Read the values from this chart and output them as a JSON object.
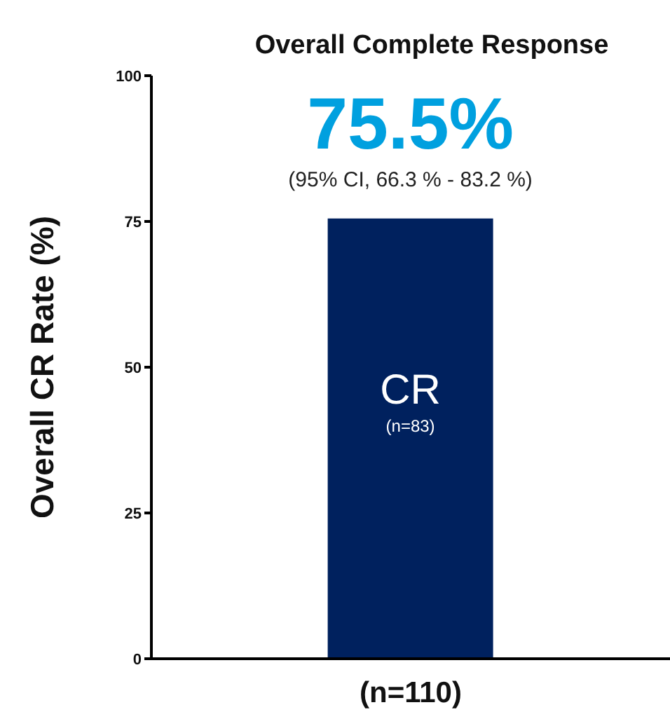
{
  "chart_data": {
    "type": "bar",
    "title": "Overall Complete Response",
    "ylabel": "Overall CR Rate (%)",
    "categories": [
      "(n=110)"
    ],
    "values": [
      75.5
    ],
    "value_labels": [
      "75.5%"
    ],
    "color": "#00215e",
    "annotations": [
      "(95% CI, 66.3 % - 83.2 %)",
      "CR",
      "(n=83)"
    ],
    "ylim": [
      0,
      100
    ],
    "yticks": [
      0,
      25,
      50,
      75,
      100
    ]
  }
}
